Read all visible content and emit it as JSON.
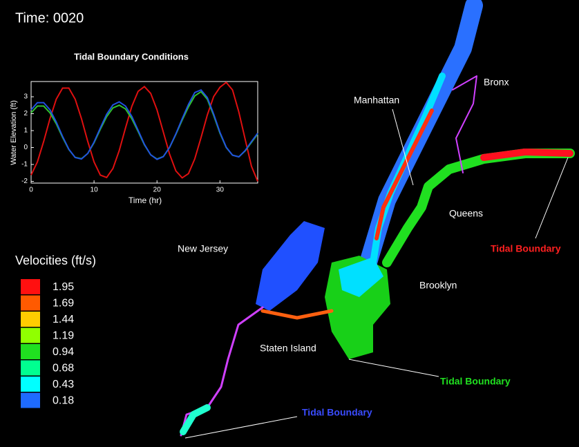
{
  "time_label": "Time: 0020",
  "chart_data": {
    "type": "line",
    "title": "Tidal Boundary Conditions",
    "x_label": "Time (hr)",
    "y_label": "Water Elevation (ft)",
    "xlim": [
      0,
      36
    ],
    "ylim": [
      -2.1,
      3.9
    ],
    "xticks": [
      0,
      10,
      20,
      30
    ],
    "yticks": [
      -2,
      -1,
      0,
      1,
      2,
      3
    ],
    "x": [
      0,
      1,
      2,
      3,
      4,
      5,
      6,
      7,
      8,
      9,
      10,
      11,
      12,
      13,
      14,
      15,
      16,
      17,
      18,
      19,
      20,
      21,
      22,
      23,
      24,
      25,
      26,
      27,
      28,
      29,
      30,
      31,
      32,
      33,
      34,
      35,
      36
    ],
    "series": [
      {
        "color": "#e01010",
        "values": [
          -1.63,
          -0.85,
          0.36,
          1.71,
          2.86,
          3.51,
          3.51,
          2.86,
          1.71,
          0.36,
          -0.85,
          -1.63,
          -1.77,
          -1.24,
          -0.18,
          1.16,
          2.43,
          3.32,
          3.6,
          3.2,
          2.23,
          0.92,
          -0.39,
          -1.38,
          -1.79,
          -1.54,
          -0.67,
          0.59,
          1.93,
          3.01,
          3.56,
          3.85,
          3.4,
          2.1,
          0.5,
          -1.1,
          -2.0
        ]
      },
      {
        "color": "#30c030",
        "values": [
          2.05,
          2.45,
          2.45,
          2.05,
          1.4,
          0.6,
          -0.12,
          -0.58,
          -0.66,
          -0.35,
          0.28,
          1.08,
          1.82,
          2.34,
          2.5,
          2.28,
          1.7,
          0.95,
          0.16,
          -0.43,
          -0.68,
          -0.53,
          0.0,
          0.78,
          1.62,
          2.4,
          3.05,
          3.3,
          2.85,
          1.9,
          0.85,
          0.0,
          -0.45,
          -0.55,
          -0.2,
          0.3,
          0.8
        ]
      },
      {
        "color": "#2050e0",
        "values": [
          2.23,
          2.65,
          2.65,
          2.23,
          1.51,
          0.66,
          -0.1,
          -0.59,
          -0.68,
          -0.35,
          0.32,
          1.16,
          1.96,
          2.52,
          2.7,
          2.45,
          1.84,
          1.02,
          0.19,
          -0.43,
          -0.7,
          -0.54,
          0.01,
          0.81,
          1.7,
          2.55,
          3.25,
          3.4,
          2.95,
          1.98,
          0.9,
          0.02,
          -0.45,
          -0.55,
          -0.18,
          0.35,
          0.85
        ]
      }
    ]
  },
  "legend": {
    "title": "Velocities (ft/s)",
    "values": [
      1.95,
      1.69,
      1.44,
      1.19,
      0.94,
      0.68,
      0.43,
      0.18
    ],
    "colors": [
      "#ff1010",
      "#ff5a00",
      "#ffcc00",
      "#90ff00",
      "#20e020",
      "#00ff90",
      "#00ffff",
      "#1e6bff"
    ]
  },
  "places": [
    "Bronx",
    "Manhattan",
    "Queens",
    "New Jersey",
    "Brooklyn",
    "Staten Island"
  ],
  "boundaries": [
    {
      "label": "Tidal Boundary",
      "color": "#ff2020"
    },
    {
      "label": "Tidal Boundary",
      "color": "#20e020"
    },
    {
      "label": "Tidal Boundary",
      "color": "#3a4cff"
    }
  ]
}
